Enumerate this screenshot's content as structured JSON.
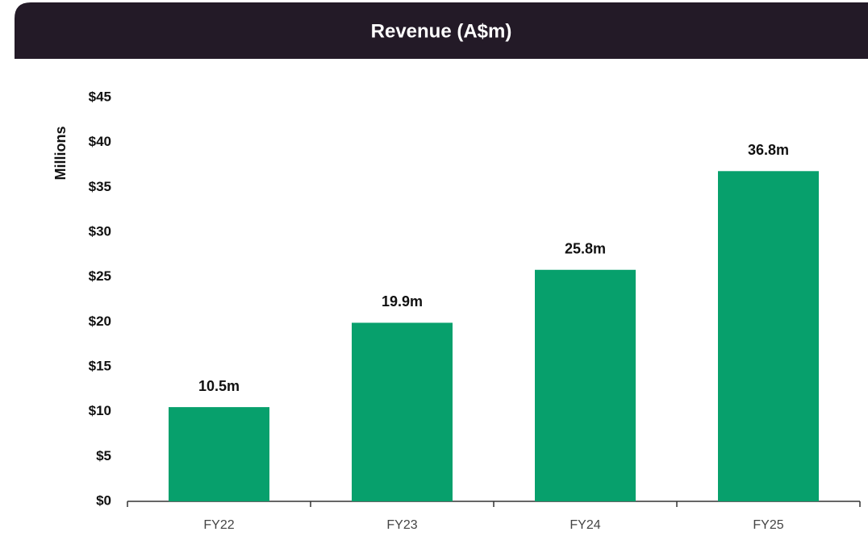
{
  "chart_data": {
    "type": "bar",
    "title": "Revenue (A$m)",
    "y_label": "Millions",
    "categories": [
      "FY22",
      "FY23",
      "FY24",
      "FY25"
    ],
    "values": [
      10.5,
      19.9,
      25.8,
      36.8
    ],
    "value_labels": [
      "10.5m",
      "19.9m",
      "25.8m",
      "36.8m"
    ],
    "color": "#07a06c",
    "ylim": [
      0,
      45
    ],
    "yticks": [
      {
        "value": 0,
        "label": "$0"
      },
      {
        "value": 5,
        "label": "$5"
      },
      {
        "value": 10,
        "label": "$10"
      },
      {
        "value": 15,
        "label": "$15"
      },
      {
        "value": 20,
        "label": "$20"
      },
      {
        "value": 25,
        "label": "$25"
      },
      {
        "value": 30,
        "label": "$30"
      },
      {
        "value": 35,
        "label": "$35"
      },
      {
        "value": 40,
        "label": "$40"
      },
      {
        "value": 45,
        "label": "$45"
      }
    ],
    "grid": false
  }
}
